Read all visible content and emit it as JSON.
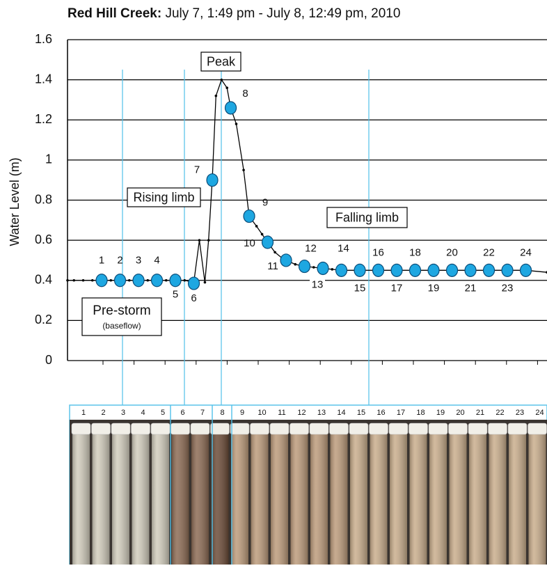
{
  "chart_data": {
    "type": "line",
    "title": "Red Hill Creek:",
    "subtitle": "July 7, 1:49 pm - July 8, 12:49 pm, 2010",
    "y_label": "Water Level (m)",
    "ylim": [
      0,
      1.6
    ],
    "yticks": [
      0,
      0.2,
      0.4,
      0.6,
      0.8,
      1,
      1.2,
      1.4,
      1.6
    ],
    "xlim": [
      -0.85,
      25.15
    ],
    "grid": true,
    "series": [
      {
        "color": "#000000",
        "x": [
          -0.85,
          -0.5,
          0,
          0.5,
          1,
          1.5,
          2,
          2.5,
          3,
          3.5,
          4,
          4.5,
          5,
          5.5,
          6,
          6.3,
          6.6,
          6.8,
          7,
          7.2,
          7.5,
          7.8,
          8,
          8.3,
          8.7,
          9,
          9.4,
          9.7,
          10,
          10.4,
          10.8,
          11,
          11.5,
          12,
          12.5,
          13,
          13.5,
          14,
          15,
          16,
          17,
          18,
          19,
          20,
          21,
          22,
          23,
          24,
          25.15
        ],
        "values": [
          0.4,
          0.4,
          0.4,
          0.4,
          0.4,
          0.4,
          0.4,
          0.4,
          0.4,
          0.4,
          0.4,
          0.4,
          0.4,
          0.4,
          0.39,
          0.6,
          0.39,
          0.6,
          0.9,
          1.32,
          1.4,
          1.36,
          1.26,
          1.18,
          0.95,
          0.72,
          0.67,
          0.63,
          0.59,
          0.54,
          0.51,
          0.5,
          0.48,
          0.47,
          0.465,
          0.46,
          0.455,
          0.45,
          0.45,
          0.45,
          0.45,
          0.45,
          0.45,
          0.45,
          0.45,
          0.45,
          0.45,
          0.45,
          0.44
        ]
      },
      {
        "color": "#1ea7e1",
        "x": [
          1,
          2,
          3,
          4,
          5,
          6,
          7,
          8,
          9,
          10,
          11,
          12,
          13,
          14,
          15,
          16,
          17,
          18,
          19,
          20,
          21,
          22,
          23,
          24
        ],
        "values": [
          0.4,
          0.4,
          0.4,
          0.4,
          0.4,
          0.385,
          0.9,
          1.26,
          0.72,
          0.59,
          0.5,
          0.47,
          0.46,
          0.45,
          0.45,
          0.45,
          0.45,
          0.45,
          0.45,
          0.45,
          0.45,
          0.45,
          0.45,
          0.45
        ]
      }
    ],
    "annotations": [
      "Peak",
      "Rising limb",
      "Falling limb",
      "Pre-storm",
      "(baseflow)"
    ]
  }
}
